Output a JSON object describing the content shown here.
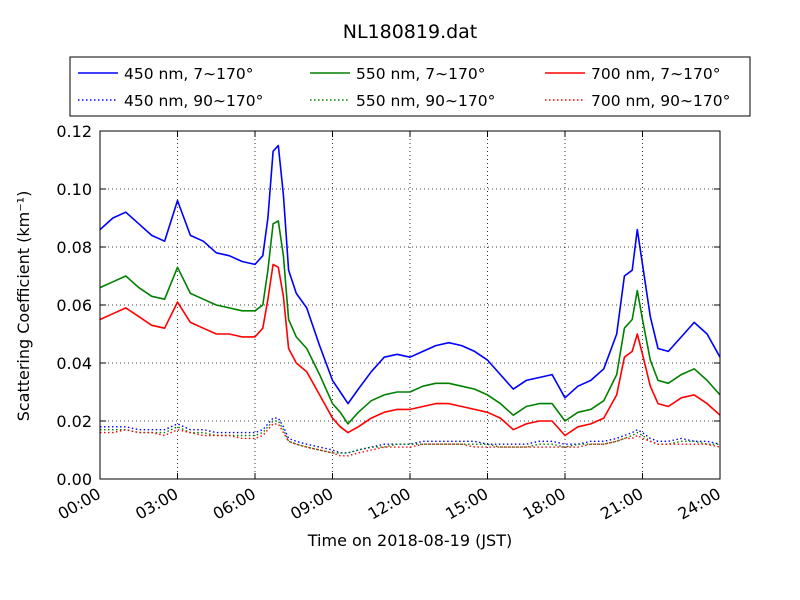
{
  "chart_data": {
    "type": "line",
    "title": "NL180819.dat",
    "xlabel": "Time on 2018-08-19 (JST)",
    "ylabel": "Scattering Coefficient (km⁻¹)",
    "x_unit": "hours",
    "xlim": [
      0,
      24
    ],
    "ylim": [
      0,
      0.12
    ],
    "x_ticks": [
      0,
      3,
      6,
      9,
      12,
      15,
      18,
      21,
      24
    ],
    "x_tick_labels": [
      "00:00",
      "03:00",
      "06:00",
      "09:00",
      "12:00",
      "15:00",
      "18:00",
      "21:00",
      "24:00"
    ],
    "y_ticks": [
      0,
      0.02,
      0.04,
      0.06,
      0.08,
      0.1,
      0.12
    ],
    "y_tick_labels": [
      "0.00",
      "0.02",
      "0.04",
      "0.06",
      "0.08",
      "0.10",
      "0.12"
    ],
    "grid": true,
    "legend_position": "top",
    "x": [
      0,
      0.5,
      1,
      1.5,
      2,
      2.5,
      3,
      3.5,
      4,
      4.5,
      5,
      5.5,
      6,
      6.3,
      6.5,
      6.7,
      6.9,
      7.1,
      7.3,
      7.6,
      8,
      8.5,
      9,
      9.3,
      9.6,
      10,
      10.5,
      11,
      11.5,
      12,
      12.5,
      13,
      13.5,
      14,
      14.5,
      15,
      15.5,
      16,
      16.5,
      17,
      17.5,
      18,
      18.5,
      19,
      19.5,
      20,
      20.3,
      20.6,
      20.8,
      21,
      21.3,
      21.6,
      22,
      22.5,
      23,
      23.5,
      24
    ],
    "series": [
      {
        "name": "450 nm, 7∼170°",
        "color": "#0000ff",
        "style": "solid",
        "values": [
          0.086,
          0.09,
          0.092,
          0.088,
          0.084,
          0.082,
          0.096,
          0.084,
          0.082,
          0.078,
          0.077,
          0.075,
          0.074,
          0.077,
          0.09,
          0.113,
          0.115,
          0.098,
          0.072,
          0.064,
          0.059,
          0.046,
          0.034,
          0.03,
          0.026,
          0.031,
          0.037,
          0.042,
          0.043,
          0.042,
          0.044,
          0.046,
          0.047,
          0.046,
          0.044,
          0.041,
          0.036,
          0.031,
          0.034,
          0.035,
          0.036,
          0.028,
          0.032,
          0.034,
          0.038,
          0.05,
          0.07,
          0.072,
          0.086,
          0.074,
          0.056,
          0.045,
          0.044,
          0.049,
          0.054,
          0.05,
          0.042
        ]
      },
      {
        "name": "550 nm, 7∼170°",
        "color": "#008000",
        "style": "solid",
        "values": [
          0.066,
          0.068,
          0.07,
          0.066,
          0.063,
          0.062,
          0.073,
          0.064,
          0.062,
          0.06,
          0.059,
          0.058,
          0.058,
          0.06,
          0.072,
          0.088,
          0.089,
          0.077,
          0.055,
          0.049,
          0.045,
          0.036,
          0.026,
          0.023,
          0.019,
          0.023,
          0.027,
          0.029,
          0.03,
          0.03,
          0.032,
          0.033,
          0.033,
          0.032,
          0.031,
          0.029,
          0.026,
          0.022,
          0.025,
          0.026,
          0.026,
          0.02,
          0.023,
          0.024,
          0.027,
          0.036,
          0.052,
          0.055,
          0.065,
          0.055,
          0.041,
          0.034,
          0.033,
          0.036,
          0.038,
          0.034,
          0.029
        ]
      },
      {
        "name": "700 nm, 7∼170°",
        "color": "#ff0000",
        "style": "solid",
        "values": [
          0.055,
          0.057,
          0.059,
          0.056,
          0.053,
          0.052,
          0.061,
          0.054,
          0.052,
          0.05,
          0.05,
          0.049,
          0.049,
          0.052,
          0.062,
          0.074,
          0.073,
          0.063,
          0.045,
          0.04,
          0.037,
          0.029,
          0.021,
          0.018,
          0.016,
          0.018,
          0.021,
          0.023,
          0.024,
          0.024,
          0.025,
          0.026,
          0.026,
          0.025,
          0.024,
          0.023,
          0.021,
          0.017,
          0.019,
          0.02,
          0.02,
          0.015,
          0.018,
          0.019,
          0.021,
          0.029,
          0.042,
          0.044,
          0.05,
          0.043,
          0.032,
          0.026,
          0.025,
          0.028,
          0.029,
          0.026,
          0.022
        ]
      },
      {
        "name": "450 nm, 90∼170°",
        "color": "#0000ff",
        "style": "dotted",
        "values": [
          0.018,
          0.018,
          0.018,
          0.017,
          0.017,
          0.017,
          0.019,
          0.017,
          0.017,
          0.016,
          0.016,
          0.016,
          0.016,
          0.017,
          0.019,
          0.021,
          0.021,
          0.018,
          0.014,
          0.013,
          0.012,
          0.011,
          0.01,
          0.009,
          0.009,
          0.01,
          0.011,
          0.012,
          0.012,
          0.012,
          0.013,
          0.013,
          0.013,
          0.013,
          0.013,
          0.012,
          0.012,
          0.012,
          0.012,
          0.013,
          0.013,
          0.012,
          0.012,
          0.013,
          0.013,
          0.014,
          0.015,
          0.016,
          0.017,
          0.016,
          0.014,
          0.013,
          0.013,
          0.014,
          0.013,
          0.013,
          0.012
        ]
      },
      {
        "name": "550 nm, 90∼170°",
        "color": "#008000",
        "style": "dotted",
        "values": [
          0.017,
          0.017,
          0.017,
          0.016,
          0.016,
          0.016,
          0.018,
          0.016,
          0.016,
          0.015,
          0.015,
          0.015,
          0.015,
          0.016,
          0.018,
          0.02,
          0.02,
          0.017,
          0.013,
          0.012,
          0.011,
          0.01,
          0.009,
          0.009,
          0.009,
          0.01,
          0.011,
          0.011,
          0.012,
          0.012,
          0.012,
          0.012,
          0.012,
          0.012,
          0.012,
          0.012,
          0.011,
          0.011,
          0.011,
          0.012,
          0.012,
          0.011,
          0.012,
          0.012,
          0.012,
          0.013,
          0.014,
          0.015,
          0.016,
          0.015,
          0.013,
          0.012,
          0.012,
          0.013,
          0.013,
          0.012,
          0.012
        ]
      },
      {
        "name": "700 nm, 90∼170°",
        "color": "#ff0000",
        "style": "dotted",
        "values": [
          0.016,
          0.016,
          0.017,
          0.016,
          0.016,
          0.015,
          0.017,
          0.016,
          0.015,
          0.015,
          0.015,
          0.014,
          0.014,
          0.015,
          0.017,
          0.019,
          0.019,
          0.016,
          0.013,
          0.012,
          0.011,
          0.01,
          0.009,
          0.008,
          0.008,
          0.009,
          0.01,
          0.011,
          0.011,
          0.011,
          0.012,
          0.012,
          0.012,
          0.012,
          0.011,
          0.011,
          0.011,
          0.011,
          0.011,
          0.011,
          0.011,
          0.011,
          0.011,
          0.012,
          0.012,
          0.013,
          0.014,
          0.014,
          0.015,
          0.014,
          0.013,
          0.012,
          0.012,
          0.012,
          0.012,
          0.012,
          0.011
        ]
      }
    ]
  }
}
